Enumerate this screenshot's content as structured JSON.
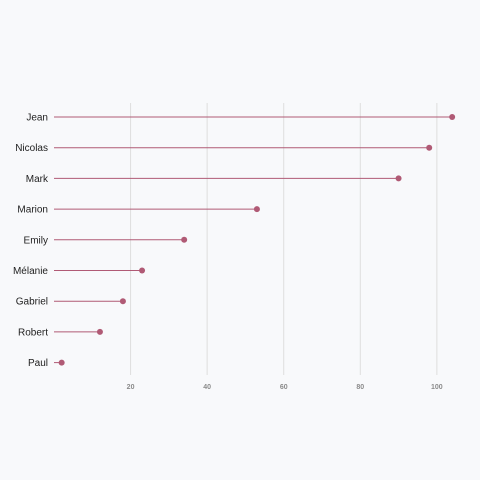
{
  "chart_data": {
    "type": "lollipop",
    "title": "",
    "xlabel": "",
    "ylabel": "",
    "categories": [
      "Jean",
      "Nicolas",
      "Mark",
      "Marion",
      "Emily",
      "Mélanie",
      "Gabriel",
      "Robert",
      "Paul"
    ],
    "values": [
      104,
      98,
      90,
      53,
      34,
      23,
      18,
      12,
      2
    ],
    "x_ticks": [
      20,
      40,
      60,
      80,
      100
    ],
    "xlim": [
      0,
      105
    ],
    "grid": "vertical",
    "colors": {
      "mark": "#b05a75",
      "grid": "#dedede",
      "background": "#f8f9fb"
    }
  }
}
